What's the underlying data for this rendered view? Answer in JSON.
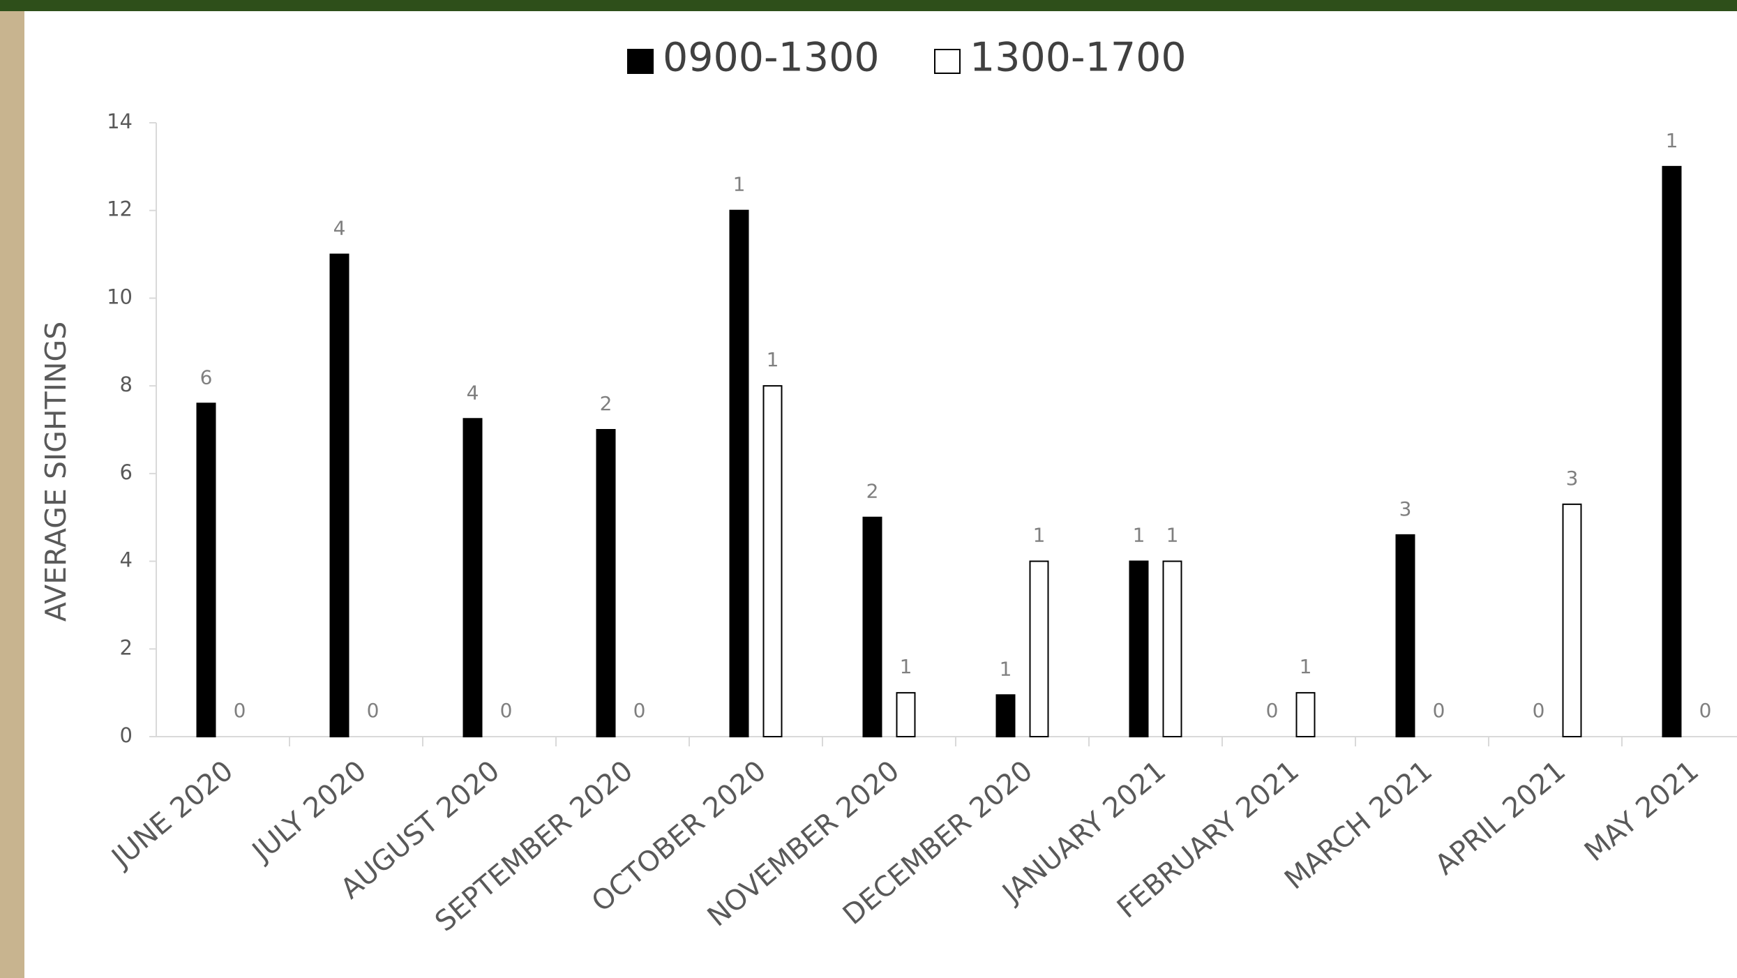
{
  "chart_data": {
    "type": "bar",
    "ylabel": "AVERAGE SIGHTINGS",
    "categories": [
      "JUNE 2020",
      "JULY 2020",
      "AUGUST 2020",
      "SEPTEMBER 2020",
      "OCTOBER 2020",
      "NOVEMBER 2020",
      "DECEMBER 2020",
      "JANUARY 2021",
      "FEBRUARY 2021",
      "MARCH 2021",
      "APRIL 2021",
      "MAY 2021"
    ],
    "series": [
      {
        "name": "0900-1300",
        "color": "#000000",
        "values": [
          7.6,
          11,
          7.25,
          7,
          12,
          5,
          0.95,
          4,
          0,
          4.6,
          0,
          13
        ],
        "annotations": [
          6,
          4,
          4,
          2,
          1,
          2,
          1,
          1,
          0,
          3,
          0,
          1
        ]
      },
      {
        "name": "1300-1700",
        "color": "#ffffff",
        "values": [
          0,
          0,
          0,
          0,
          8,
          1,
          4,
          4,
          1,
          0,
          5.3,
          0
        ],
        "annotations": [
          0,
          0,
          0,
          0,
          1,
          1,
          1,
          1,
          1,
          0,
          3,
          0
        ]
      }
    ],
    "ylim": [
      0,
      14
    ],
    "yticks": [
      0,
      2,
      4,
      6,
      8,
      10,
      12,
      14
    ],
    "grid": false,
    "legend": "top"
  }
}
